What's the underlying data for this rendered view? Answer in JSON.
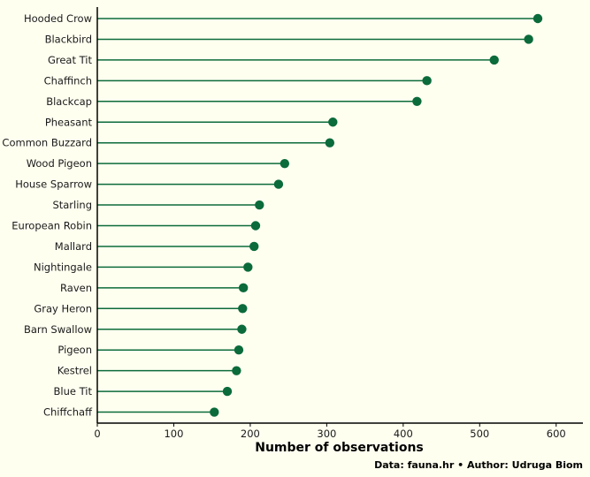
{
  "chart_data": {
    "type": "lollipop",
    "orientation": "horizontal",
    "categories": [
      "Hooded Crow",
      "Blackbird",
      "Great Tit",
      "Chaffinch",
      "Blackcap",
      "Pheasant",
      "Common Buzzard",
      "Wood Pigeon",
      "House Sparrow",
      "Starling",
      "European Robin",
      "Mallard",
      "Nightingale",
      "Raven",
      "Gray Heron",
      "Barn Swallow",
      "Pigeon",
      "Kestrel",
      "Blue Tit",
      "Chiffchaff"
    ],
    "values": [
      576,
      564,
      519,
      431,
      418,
      308,
      304,
      245,
      237,
      212,
      207,
      205,
      197,
      191,
      190,
      189,
      185,
      182,
      170,
      153
    ],
    "xlabel": "Number of observations",
    "xlim": [
      0,
      635
    ],
    "xticks": [
      "0",
      "100",
      "200",
      "300",
      "400",
      "500",
      "600"
    ],
    "color": "#0b6b3a",
    "caption": "Data: fauna.hr • Author: Udruga Biom",
    "grid": false
  }
}
